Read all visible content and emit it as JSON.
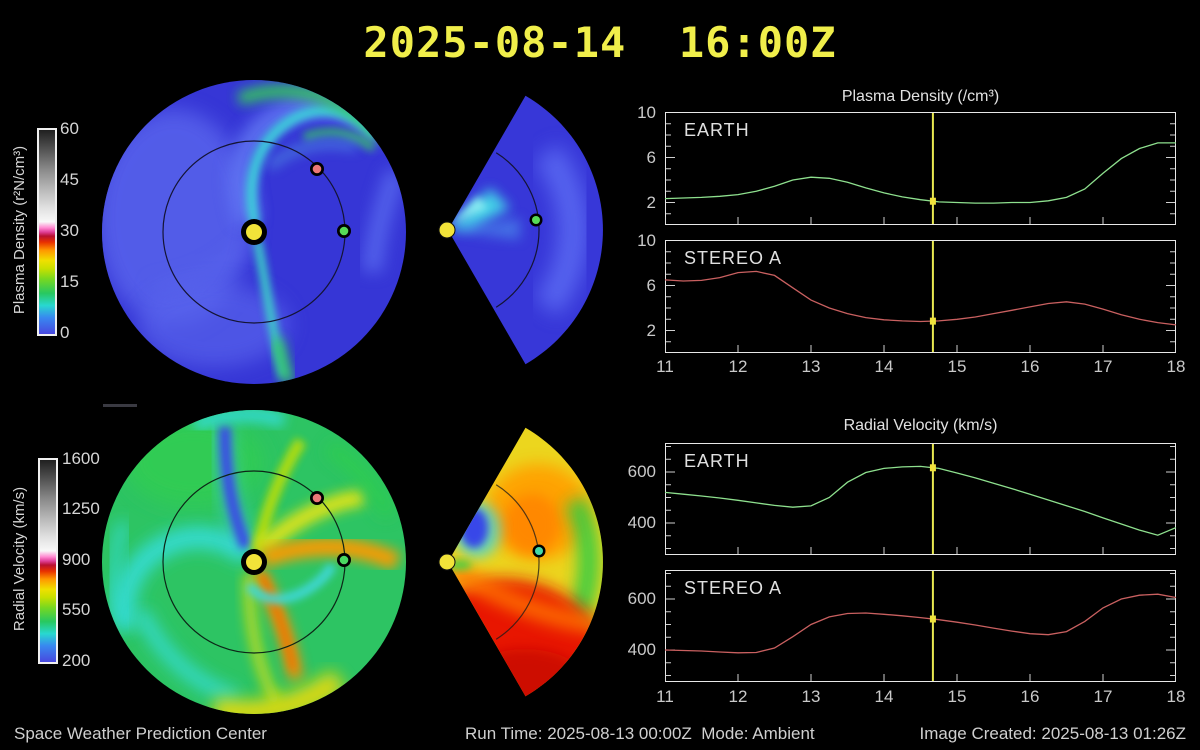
{
  "title": "2025-08-14  16:00Z",
  "colorbars": {
    "density": {
      "label": "Plasma Density (r²N/cm³)",
      "ticks": [
        "60",
        "45",
        "30",
        "15",
        "0"
      ]
    },
    "velocity": {
      "label": "Radial Velocity (km/s)",
      "ticks": [
        "1600",
        "1250",
        "900",
        "550",
        "200"
      ]
    }
  },
  "markers": {
    "sun": "Sun",
    "earth": "Earth",
    "stereo_a": "STEREO A"
  },
  "colors": {
    "title_yellow": "#f0ee4a",
    "earth_series": "#8ee08e",
    "stereo_series": "#c96060",
    "time_marker": "#e8e850",
    "earth_dot": "#57da57",
    "stereo_dot": "#ec7878",
    "sun_dot": "#f2e339"
  },
  "footer": {
    "left": "Space Weather Prediction Center",
    "run_time": "Run Time: 2025-08-13 00:00Z  Mode: Ambient",
    "created": "Image Created: 2025-08-13 01:26Z"
  },
  "chart_data": [
    {
      "type": "line",
      "title": "Plasma Density (/cm³)",
      "panel": "EARTH",
      "series_color": "#8ee08e",
      "ylim": [
        0,
        10.1
      ],
      "yticks": [
        10,
        6,
        2
      ],
      "xticks": [
        11,
        12,
        13,
        14,
        15,
        16,
        17,
        18
      ],
      "time_marker_x": 14.67,
      "x": [
        11,
        11.25,
        11.5,
        11.75,
        12,
        12.25,
        12.5,
        12.75,
        13,
        13.25,
        13.5,
        13.75,
        14,
        14.25,
        14.5,
        14.75,
        15,
        15.25,
        15.5,
        15.75,
        16,
        16.25,
        16.5,
        16.75,
        17,
        17.25,
        17.5,
        17.75,
        18
      ],
      "values": [
        2.35,
        2.4,
        2.45,
        2.55,
        2.7,
        3.0,
        3.45,
        4.0,
        4.25,
        4.15,
        3.8,
        3.3,
        2.85,
        2.5,
        2.25,
        2.05,
        2.0,
        1.95,
        1.95,
        2.0,
        2.0,
        2.15,
        2.45,
        3.2,
        4.6,
        5.9,
        6.8,
        7.3,
        7.3
      ]
    },
    {
      "type": "line",
      "title": "Plasma Density (/cm³)",
      "panel": "STEREO A",
      "series_color": "#c96060",
      "ylim": [
        0,
        10.1
      ],
      "yticks": [
        10,
        6,
        2
      ],
      "xticks": [
        11,
        12,
        13,
        14,
        15,
        16,
        17,
        18
      ],
      "time_marker_x": 14.67,
      "x": [
        11,
        11.25,
        11.5,
        11.75,
        12,
        12.25,
        12.5,
        12.75,
        13,
        13.25,
        13.5,
        13.75,
        14,
        14.25,
        14.5,
        14.75,
        15,
        15.25,
        15.5,
        15.75,
        16,
        16.25,
        16.5,
        16.75,
        17,
        17.25,
        17.5,
        17.75,
        18
      ],
      "values": [
        6.5,
        6.4,
        6.45,
        6.7,
        7.15,
        7.25,
        6.9,
        5.8,
        4.7,
        4.0,
        3.5,
        3.15,
        2.95,
        2.85,
        2.8,
        2.85,
        3.0,
        3.2,
        3.5,
        3.8,
        4.1,
        4.4,
        4.55,
        4.35,
        3.9,
        3.4,
        3.0,
        2.7,
        2.5
      ]
    },
    {
      "type": "line",
      "title": "Radial Velocity (km/s)",
      "panel": "EARTH",
      "series_color": "#8ee08e",
      "ylim": [
        275,
        715
      ],
      "yticks": [
        600,
        400
      ],
      "xticks": [
        11,
        12,
        13,
        14,
        15,
        16,
        17,
        18
      ],
      "time_marker_x": 14.67,
      "x": [
        11,
        11.25,
        11.5,
        11.75,
        12,
        12.25,
        12.5,
        12.75,
        13,
        13.25,
        13.5,
        13.75,
        14,
        14.25,
        14.5,
        14.75,
        15,
        15.25,
        15.5,
        15.75,
        16,
        16.25,
        16.5,
        16.75,
        17,
        17.25,
        17.5,
        17.75,
        18
      ],
      "values": [
        520,
        513,
        506,
        498,
        489,
        479,
        469,
        462,
        467,
        500,
        560,
        598,
        614,
        620,
        622,
        614,
        596,
        577,
        556,
        535,
        513,
        490,
        468,
        445,
        420,
        396,
        372,
        352,
        382
      ]
    },
    {
      "type": "line",
      "title": "Radial Velocity (km/s)",
      "panel": "STEREO A",
      "series_color": "#c96060",
      "ylim": [
        275,
        715
      ],
      "yticks": [
        600,
        400
      ],
      "xticks": [
        11,
        12,
        13,
        14,
        15,
        16,
        17,
        18
      ],
      "time_marker_x": 14.67,
      "x": [
        11,
        11.25,
        11.5,
        11.75,
        12,
        12.25,
        12.5,
        12.75,
        13,
        13.25,
        13.5,
        13.75,
        14,
        14.25,
        14.5,
        14.75,
        15,
        15.25,
        15.5,
        15.75,
        16,
        16.25,
        16.5,
        16.75,
        17,
        17.25,
        17.5,
        17.75,
        18
      ],
      "values": [
        400,
        398,
        396,
        392,
        389,
        390,
        408,
        452,
        500,
        530,
        543,
        545,
        540,
        534,
        527,
        519,
        509,
        498,
        486,
        474,
        464,
        460,
        472,
        512,
        565,
        600,
        615,
        619,
        606
      ]
    }
  ]
}
